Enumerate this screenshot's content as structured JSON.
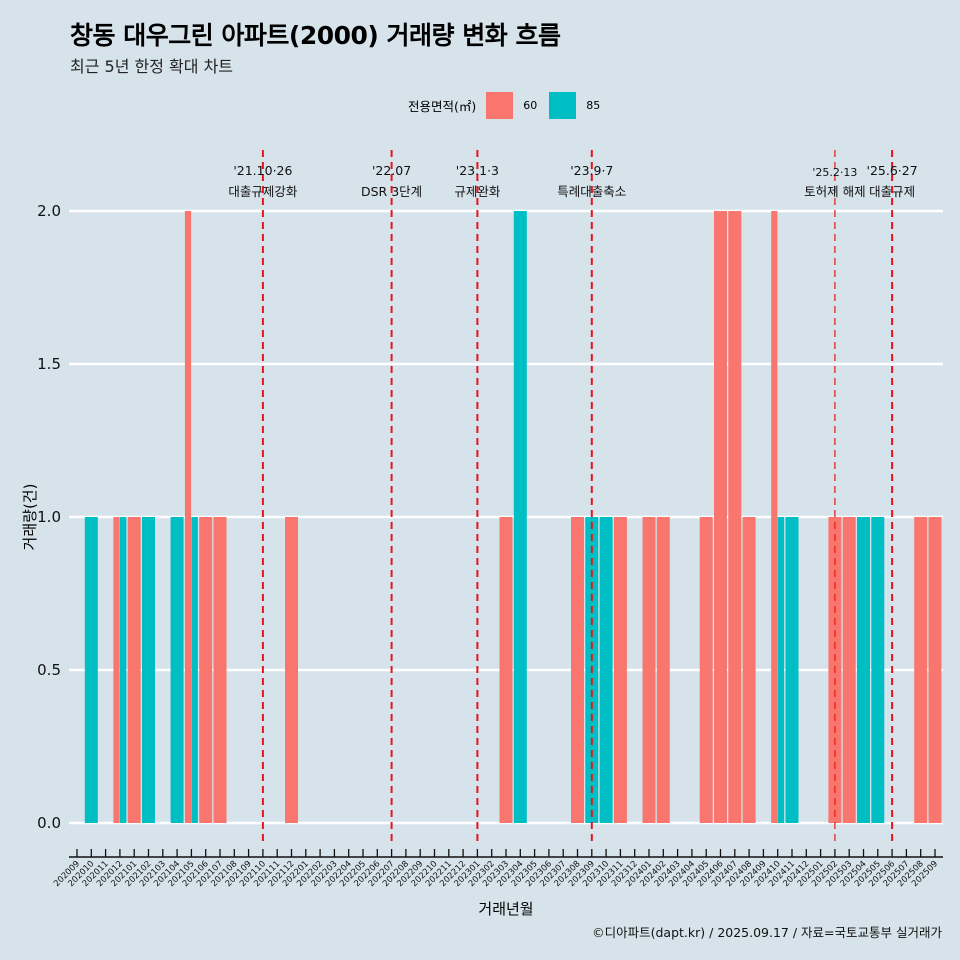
{
  "header": {
    "title": "창동 대우그린 아파트(2000) 거래량 변화 흐름",
    "subtitle": "최근 5년 한정 확대 차트"
  },
  "legend": {
    "title": "전용면적(㎡)",
    "items": [
      {
        "label": "60",
        "color": "#f8766d"
      },
      {
        "label": "85",
        "color": "#00bfc4"
      }
    ]
  },
  "caption": "©디아파트(dapt.kr) / 2025.09.17 / 자료=국토교통부 실거래가",
  "chart_data": {
    "type": "bar",
    "title": "창동 대우그린 아파트(2000) 거래량 변화 흐름",
    "subtitle": "최근 5년 한정 확대 차트",
    "xlabel": "거래년월",
    "ylabel": "거래량(건)",
    "ylim": [
      0,
      2
    ],
    "yticks": [
      "0.0",
      "0.5",
      "1.0",
      "1.5",
      "2.0"
    ],
    "ytick_values": [
      0,
      0.5,
      1.0,
      1.5,
      2.0
    ],
    "grid": true,
    "legend_position": "top",
    "categories": [
      "202009",
      "202010",
      "202011",
      "202012",
      "202101",
      "202102",
      "202103",
      "202104",
      "202105",
      "202106",
      "202107",
      "202108",
      "202109",
      "202110",
      "202111",
      "202112",
      "202201",
      "202202",
      "202203",
      "202204",
      "202205",
      "202206",
      "202207",
      "202208",
      "202209",
      "202210",
      "202211",
      "202212",
      "202301",
      "202302",
      "202303",
      "202304",
      "202305",
      "202306",
      "202307",
      "202308",
      "202309",
      "202310",
      "202311",
      "202312",
      "202401",
      "202402",
      "202403",
      "202404",
      "202405",
      "202406",
      "202407",
      "202408",
      "202409",
      "202410",
      "202411",
      "202412",
      "202501",
      "202502",
      "202503",
      "202504",
      "202505",
      "202506",
      "202507",
      "202508",
      "202509"
    ],
    "series": [
      {
        "name": "60",
        "color": "#f8766d",
        "values": [
          0,
          0,
          0,
          1,
          1,
          0,
          0,
          0,
          2,
          1,
          1,
          0,
          0,
          0,
          0,
          1,
          0,
          0,
          0,
          0,
          0,
          0,
          0,
          0,
          0,
          0,
          0,
          0,
          0,
          0,
          1,
          0,
          0,
          0,
          0,
          1,
          0,
          0,
          1,
          0,
          1,
          1,
          0,
          0,
          1,
          2,
          2,
          1,
          0,
          2,
          0,
          0,
          0,
          1,
          1,
          0,
          0,
          0,
          0,
          1,
          1
        ]
      },
      {
        "name": "85",
        "color": "#00bfc4",
        "values": [
          0,
          1,
          0,
          1,
          0,
          1,
          0,
          1,
          1,
          0,
          0,
          0,
          0,
          0,
          0,
          0,
          0,
          0,
          0,
          0,
          0,
          0,
          0,
          0,
          0,
          0,
          0,
          0,
          0,
          0,
          0,
          2,
          0,
          0,
          0,
          0,
          1,
          1,
          0,
          0,
          0,
          0,
          0,
          0,
          0,
          0,
          0,
          0,
          0,
          1,
          1,
          0,
          0,
          0,
          0,
          1,
          1,
          0,
          0,
          0,
          0
        ]
      }
    ],
    "annotations": [
      {
        "month": "202110",
        "date": "'21.10·26",
        "label": "대출규제강화",
        "style": "bold"
      },
      {
        "month": "202207",
        "date": "'22.07",
        "label": "DSR 3단계",
        "style": "bold"
      },
      {
        "month": "202301",
        "date": "'23.1·3",
        "label": "규제완화",
        "style": "bold"
      },
      {
        "month": "202309",
        "date": "'23.9·7",
        "label": "특례대출축소",
        "style": "bold"
      },
      {
        "month": "202502",
        "date": "'25.2·13",
        "label": "토허제 해제",
        "style": "thin"
      },
      {
        "month": "202506",
        "date": "'25.6·27",
        "label": "대출규제",
        "style": "bold"
      }
    ]
  }
}
